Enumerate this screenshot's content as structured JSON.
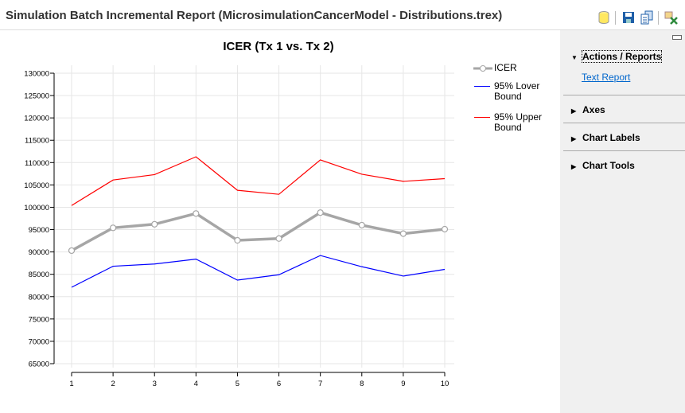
{
  "window": {
    "title": "Simulation Batch Incremental Report (MicrosimulationCancerModel - Distributions.trex)",
    "toolbar": [
      "database-icon",
      "save-icon",
      "copy-icon",
      "export-excel-icon"
    ]
  },
  "side_panel": {
    "sections": [
      {
        "label": "Actions / Reports",
        "expanded": true,
        "items": [
          "Text Report"
        ]
      },
      {
        "label": "Axes",
        "expanded": false
      },
      {
        "label": "Chart Labels",
        "expanded": false
      },
      {
        "label": "Chart Tools",
        "expanded": false
      }
    ]
  },
  "chart_data": {
    "type": "line",
    "title": "ICER (Tx 1 vs. Tx 2)",
    "xlabel": "",
    "ylabel": "",
    "x": [
      1,
      2,
      3,
      4,
      5,
      6,
      7,
      8,
      9,
      10
    ],
    "ylim": [
      65000,
      130000
    ],
    "yticks": [
      65000,
      70000,
      75000,
      80000,
      85000,
      90000,
      95000,
      100000,
      105000,
      110000,
      115000,
      120000,
      125000,
      130000
    ],
    "grid": true,
    "legend": "right",
    "series": [
      {
        "name": "ICER",
        "color": "#a6a6a6",
        "markers": true,
        "values": [
          90300,
          95400,
          96200,
          98600,
          92600,
          93000,
          98800,
          96000,
          94100,
          95100
        ]
      },
      {
        "name": "95% Lover Bound",
        "color": "#0000ff",
        "values": [
          82100,
          86800,
          87300,
          88400,
          83700,
          84900,
          89200,
          86700,
          84600,
          86100
        ]
      },
      {
        "name": "95% Upper Bound",
        "color": "#ff0000",
        "values": [
          100400,
          106100,
          107300,
          111300,
          103800,
          102900,
          110600,
          107400,
          105800,
          106400
        ]
      }
    ]
  }
}
